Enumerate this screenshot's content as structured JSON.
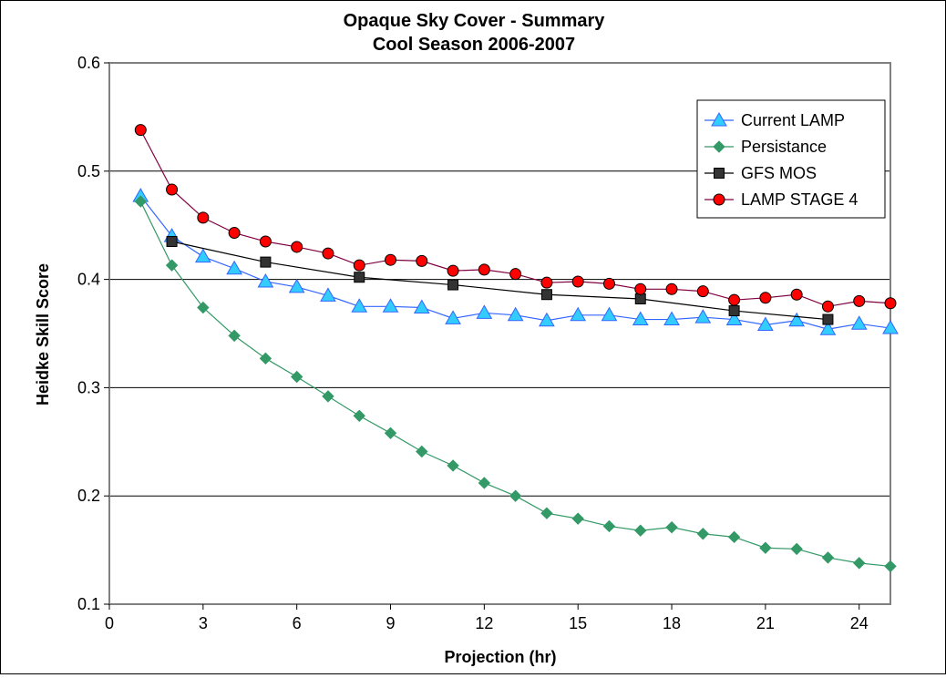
{
  "chart_data": {
    "type": "line",
    "title": "Opaque Sky Cover - Summary",
    "subtitle": "Cool Season 2006-2007",
    "xlabel": "Projection (hr)",
    "ylabel": "Heidke Skill Score",
    "xlim": [
      0,
      25
    ],
    "ylim": [
      0.1,
      0.6
    ],
    "xticks": [
      0,
      3,
      6,
      9,
      12,
      15,
      18,
      21,
      24
    ],
    "yticks": [
      0.1,
      0.2,
      0.3,
      0.4,
      0.5,
      0.6
    ],
    "xtick_labels": [
      "0",
      "3",
      "6",
      "9",
      "12",
      "15",
      "18",
      "21",
      "24"
    ],
    "ytick_labels": [
      "0.1",
      "0.2",
      "0.3",
      "0.4",
      "0.5",
      "0.6"
    ],
    "grid": "horizontal",
    "legend_position": "top-right",
    "series": [
      {
        "name": "Current LAMP",
        "marker": "triangle",
        "line_color": "#3366ff",
        "marker_color": "#33ccff",
        "x": [
          1,
          2,
          3,
          4,
          5,
          6,
          7,
          8,
          9,
          10,
          11,
          12,
          13,
          14,
          15,
          16,
          17,
          18,
          19,
          20,
          21,
          22,
          23,
          24,
          25
        ],
        "values": [
          0.477,
          0.44,
          0.421,
          0.41,
          0.398,
          0.393,
          0.385,
          0.375,
          0.375,
          0.374,
          0.364,
          0.369,
          0.367,
          0.362,
          0.367,
          0.367,
          0.363,
          0.363,
          0.365,
          0.363,
          0.358,
          0.362,
          0.354,
          0.359,
          0.355
        ]
      },
      {
        "name": "Persistance",
        "marker": "diamond",
        "line_color": "#339966",
        "marker_color": "#339966",
        "x": [
          1,
          2,
          3,
          4,
          5,
          6,
          7,
          8,
          9,
          10,
          11,
          12,
          13,
          14,
          15,
          16,
          17,
          18,
          19,
          20,
          21,
          22,
          23,
          24,
          25
        ],
        "values": [
          0.472,
          0.413,
          0.374,
          0.348,
          0.327,
          0.31,
          0.292,
          0.274,
          0.258,
          0.241,
          0.228,
          0.212,
          0.2,
          0.184,
          0.179,
          0.172,
          0.168,
          0.171,
          0.165,
          0.162,
          0.152,
          0.151,
          0.143,
          0.138,
          0.135
        ]
      },
      {
        "name": "GFS MOS",
        "marker": "square",
        "line_color": "#000000",
        "marker_color": "#333333",
        "x": [
          2,
          5,
          8,
          11,
          14,
          17,
          20,
          23
        ],
        "values": [
          0.435,
          0.416,
          0.402,
          0.395,
          0.386,
          0.382,
          0.371,
          0.363
        ]
      },
      {
        "name": "LAMP STAGE 4",
        "marker": "circle",
        "line_color": "#800040",
        "marker_color": "#ff0000",
        "x": [
          1,
          2,
          3,
          4,
          5,
          6,
          7,
          8,
          9,
          10,
          11,
          12,
          13,
          14,
          15,
          16,
          17,
          18,
          19,
          20,
          21,
          22,
          23,
          24,
          25
        ],
        "values": [
          0.538,
          0.483,
          0.457,
          0.443,
          0.435,
          0.43,
          0.424,
          0.413,
          0.418,
          0.417,
          0.408,
          0.409,
          0.405,
          0.397,
          0.398,
          0.396,
          0.391,
          0.391,
          0.389,
          0.381,
          0.383,
          0.386,
          0.375,
          0.38,
          0.378
        ]
      }
    ]
  }
}
